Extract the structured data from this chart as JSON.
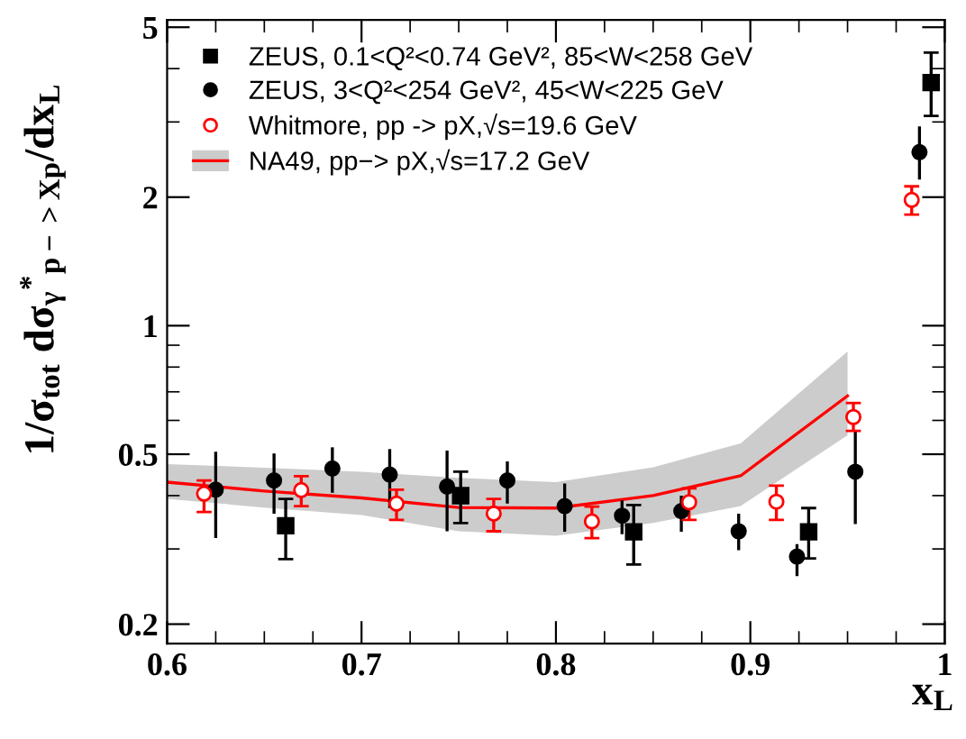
{
  "chart_data": {
    "type": "scatter",
    "xlabel": "x$_{L}$",
    "ylabel": "1/σ$_{tot}$ dσ$_{γ}$$^{*}$$_{p−>Xp}$/dx$_{L}$",
    "xlim": [
      0.6,
      1.0
    ],
    "xticks": [
      0.6,
      {
        "value": 0.625,
        "label": null
      },
      {
        "value": 0.65,
        "label": null
      },
      {
        "value": 0.675,
        "label": null
      },
      0.7,
      {
        "value": 0.725,
        "label": null
      },
      {
        "value": 0.75,
        "label": null
      },
      {
        "value": 0.775,
        "label": null
      },
      0.8,
      {
        "value": 0.825,
        "label": null
      },
      {
        "value": 0.85,
        "label": null
      },
      {
        "value": 0.875,
        "label": null
      },
      0.9,
      {
        "value": 0.925,
        "label": null
      },
      {
        "value": 0.95,
        "label": null
      },
      {
        "value": 0.975,
        "label": null
      },
      1
    ],
    "ylim": [
      0.18,
      5.2
    ],
    "yticks": [
      0.2,
      {
        "value": 0.3,
        "label": null
      },
      {
        "value": 0.4,
        "label": null
      },
      0.5,
      {
        "value": 0.6,
        "label": null
      },
      {
        "value": 0.7,
        "label": null
      },
      {
        "value": 0.8,
        "label": null
      },
      {
        "value": 0.9,
        "label": null
      },
      1,
      2,
      {
        "value": 3,
        "label": null
      },
      {
        "value": 4,
        "label": null
      },
      5
    ],
    "log": "y",
    "grid": false,
    "legend": "top left",
    "series": [
      {
        "name": "ZEUS, 0.1<Q²<0.74 GeV², 85<W<258 GeV",
        "marker": "square",
        "color": "#000000",
        "x": [
          0.661,
          0.751,
          0.84,
          0.93,
          0.993
        ],
        "values": [
          0.34,
          0.4,
          0.329,
          0.329,
          3.71
        ],
        "errors": [
          [
            0.284,
            0.393
          ],
          [
            0.345,
            0.455
          ],
          [
            0.276,
            0.38
          ],
          [
            0.285,
            0.374
          ],
          [
            3.1,
            4.36
          ]
        ]
      },
      {
        "name": "ZEUS, 3<Q²<254 GeV², 45<W<225 GeV",
        "marker": "circle",
        "color": "#000000",
        "x": [
          0.625,
          0.655,
          0.685,
          0.7145,
          0.744,
          0.775,
          0.8045,
          0.834,
          0.8645,
          0.894,
          0.924,
          0.954,
          0.987
        ],
        "values": [
          0.413,
          0.434,
          0.463,
          0.448,
          0.42,
          0.434,
          0.378,
          0.359,
          0.368,
          0.33,
          0.288,
          0.455,
          2.55
        ],
        "errors": [
          [
            0.318,
            0.507
          ],
          [
            0.363,
            0.502
          ],
          [
            0.406,
            0.519
          ],
          [
            0.374,
            0.514
          ],
          [
            0.33,
            0.51
          ],
          [
            0.383,
            0.481
          ],
          [
            0.329,
            0.427
          ],
          [
            0.325,
            0.39
          ],
          [
            0.329,
            0.4
          ],
          [
            0.298,
            0.363
          ],
          [
            0.259,
            0.308
          ],
          [
            0.343,
            0.567
          ],
          [
            2.2,
            2.93
          ]
        ]
      },
      {
        "name": "Whitmore, pp -> pX,√s=19.6 GeV",
        "marker": "circle",
        "color": "#ff0000",
        "x": [
          0.619,
          0.669,
          0.718,
          0.768,
          0.8185,
          0.8685,
          0.9134,
          0.953,
          0.983
        ],
        "values": [
          0.404,
          0.412,
          0.383,
          0.363,
          0.348,
          0.386,
          0.387,
          0.611,
          1.97
        ],
        "errors": [
          [
            0.366,
            0.434
          ],
          [
            0.378,
            0.444
          ],
          [
            0.351,
            0.413
          ],
          [
            0.33,
            0.393
          ],
          [
            0.318,
            0.377
          ],
          [
            0.351,
            0.416
          ],
          [
            0.351,
            0.422
          ],
          [
            0.567,
            0.659
          ],
          [
            1.82,
            2.12
          ]
        ]
      },
      {
        "name": "NA49, pp−> pX,√s=17.2 GeV",
        "type": "line",
        "color": "#ff0000",
        "x": [
          0.6,
          0.65,
          0.7,
          0.75,
          0.8,
          0.85,
          0.895,
          0.95
        ],
        "values": [
          0.43,
          0.41,
          0.395,
          0.375,
          0.374,
          0.4,
          0.445,
          0.685
        ],
        "lower": [
          0.393,
          0.375,
          0.36,
          0.33,
          0.322,
          0.345,
          0.378,
          0.554
        ],
        "upper": [
          0.474,
          0.465,
          0.455,
          0.44,
          0.43,
          0.466,
          0.53,
          0.87
        ]
      }
    ]
  }
}
